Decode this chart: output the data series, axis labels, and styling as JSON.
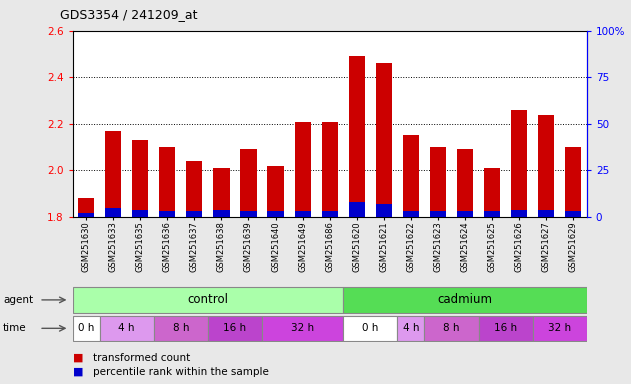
{
  "title": "GDS3354 / 241209_at",
  "samples": [
    "GSM251630",
    "GSM251633",
    "GSM251635",
    "GSM251636",
    "GSM251637",
    "GSM251638",
    "GSM251639",
    "GSM251640",
    "GSM251649",
    "GSM251686",
    "GSM251620",
    "GSM251621",
    "GSM251622",
    "GSM251623",
    "GSM251624",
    "GSM251625",
    "GSM251626",
    "GSM251627",
    "GSM251629"
  ],
  "transformed_count": [
    1.88,
    2.17,
    2.13,
    2.1,
    2.04,
    2.01,
    2.09,
    2.02,
    2.21,
    2.21,
    2.49,
    2.46,
    2.15,
    2.1,
    2.09,
    2.01,
    2.26,
    2.24,
    2.1
  ],
  "percentile_rank": [
    2,
    5,
    4,
    3,
    3,
    4,
    3,
    3,
    3,
    3,
    8,
    7,
    3,
    3,
    3,
    3,
    4,
    4,
    3
  ],
  "ylim_left": [
    1.8,
    2.6
  ],
  "ylim_right": [
    0,
    100
  ],
  "yticks_left": [
    1.8,
    2.0,
    2.2,
    2.4,
    2.6
  ],
  "yticks_right": [
    0,
    25,
    50,
    75,
    100
  ],
  "bar_color_red": "#cc0000",
  "bar_color_blue": "#0000cc",
  "background_color": "#e8e8e8",
  "plot_bg": "#ffffff",
  "agent_control_color": "#aaffaa",
  "agent_cadmium_color": "#55dd55",
  "time_white": "#ffffff",
  "time_light_purple": "#dd99ee",
  "time_mid_purple": "#cc66cc",
  "time_dark_purple": "#bb44cc",
  "time_darkest_purple": "#cc44dd",
  "agent_label": "agent",
  "time_label": "time",
  "control_label": "control",
  "cadmium_label": "cadmium",
  "ctrl_time_counts": [
    1,
    2,
    2,
    2,
    3
  ],
  "cad_time_counts": [
    2,
    1,
    2,
    2,
    2
  ],
  "ctrl_time_labels": [
    "0 h",
    "4 h",
    "8 h",
    "16 h",
    "32 h"
  ],
  "cad_time_labels": [
    "0 h",
    "4 h",
    "8 h",
    "16 h",
    "32 h"
  ],
  "control_count": 10,
  "cadmium_count": 9,
  "legend_red_label": "transformed count",
  "legend_blue_label": "percentile rank within the sample"
}
